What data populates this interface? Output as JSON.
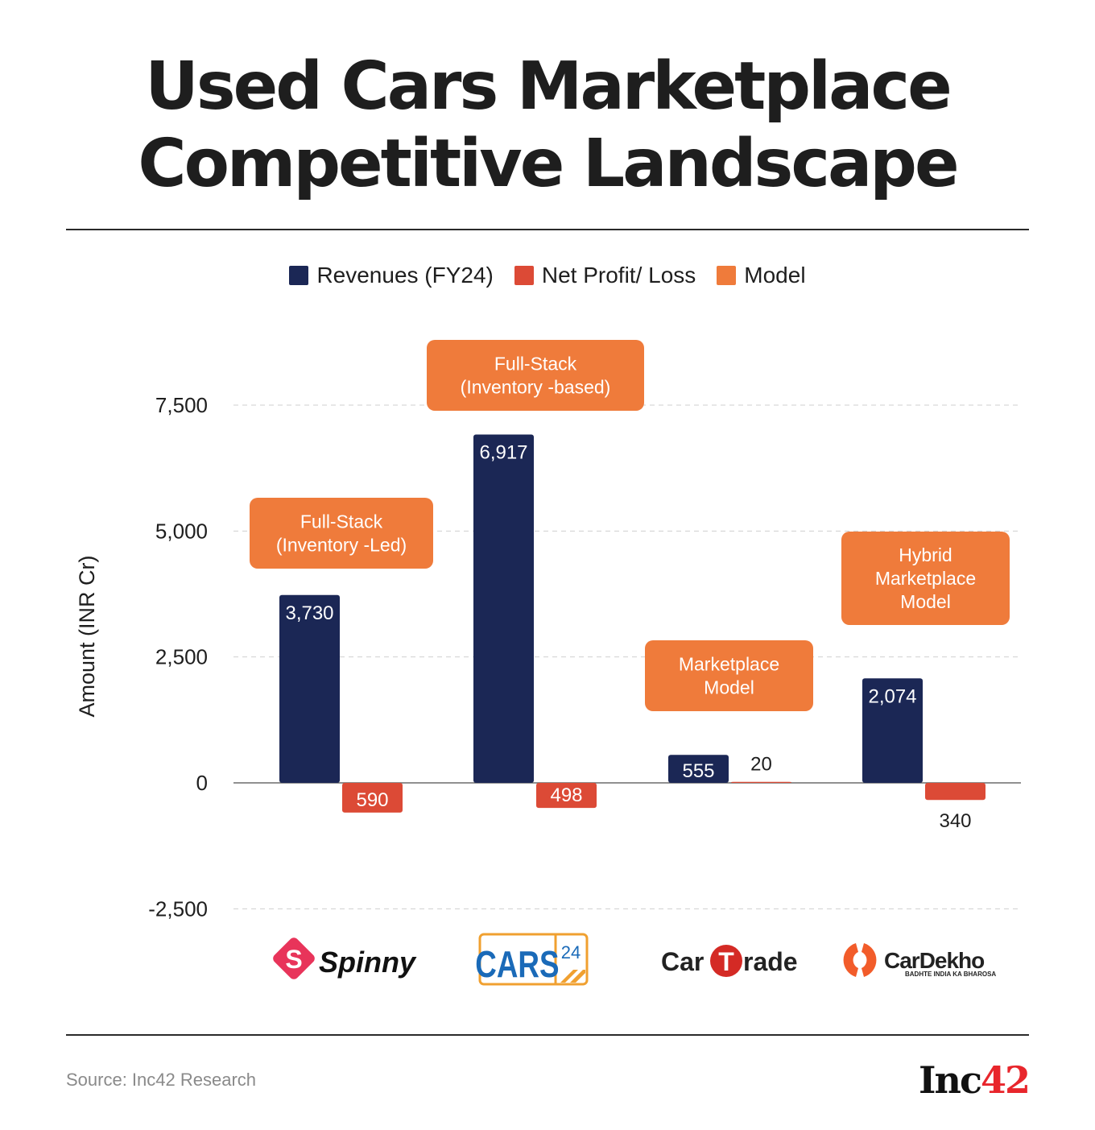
{
  "title_line1": "Used Cars Marketplace",
  "title_line2": "Competitive Landscape",
  "source": "Source: Inc42 Research",
  "brand_logo": {
    "text": "Inc",
    "num": "42"
  },
  "colors": {
    "revenue": "#1b2755",
    "profit": "#dc4a36",
    "model": "#ef7b3b",
    "grid": "#cfcfcf",
    "axis": "#6b6b6b"
  },
  "legend": [
    {
      "label": "Revenues (FY24)",
      "color": "#1b2755"
    },
    {
      "label": "Net Profit/ Loss",
      "color": "#dc4a36"
    },
    {
      "label": "Model",
      "color": "#ef7b3b"
    }
  ],
  "companies": [
    {
      "name": "Spinny",
      "logo": "spinny-logo",
      "model": [
        "Full-Stack",
        "(Inventory -Led)"
      ]
    },
    {
      "name": "CARS24",
      "logo": "cars24-logo",
      "model": [
        "Full-Stack",
        "(Inventory -based)"
      ]
    },
    {
      "name": "CarTrade",
      "logo": "cartrade-logo",
      "model": [
        "Marketplace",
        "Model"
      ]
    },
    {
      "name": "CarDekho",
      "logo": "cardekho-logo",
      "tagline": "BADHTE INDIA KA BHAROSA",
      "model": [
        "Hybrid",
        "Marketplace",
        "Model"
      ]
    }
  ],
  "chart_data": {
    "type": "bar",
    "title": "Used Cars Marketplace Competitive Landscape",
    "categories": [
      "Spinny",
      "CARS24",
      "CarTrade",
      "CarDekho"
    ],
    "series": [
      {
        "name": "Revenues (FY24)",
        "values": [
          3730,
          6917,
          555,
          2074
        ],
        "labels": [
          "3,730",
          "6,917",
          "555",
          "2,074"
        ]
      },
      {
        "name": "Net Profit/ Loss",
        "values": [
          -590,
          -498,
          20,
          -340
        ],
        "labels": [
          "590",
          "498",
          "20",
          "340"
        ]
      }
    ],
    "models": [
      "Full-Stack (Inventory -Led)",
      "Full-Stack (Inventory -based)",
      "Marketplace Model",
      "Hybrid Marketplace Model"
    ],
    "xlabel": "",
    "ylabel": "Amount (INR Cr)",
    "ylim": [
      -2500,
      7500
    ],
    "yticks": [
      7500,
      5000,
      2500,
      0,
      -2500
    ],
    "ytick_labels": [
      "7,500",
      "5,000",
      "2,500",
      "0",
      "-2,500"
    ],
    "grid": true,
    "legend_position": "top-center"
  }
}
